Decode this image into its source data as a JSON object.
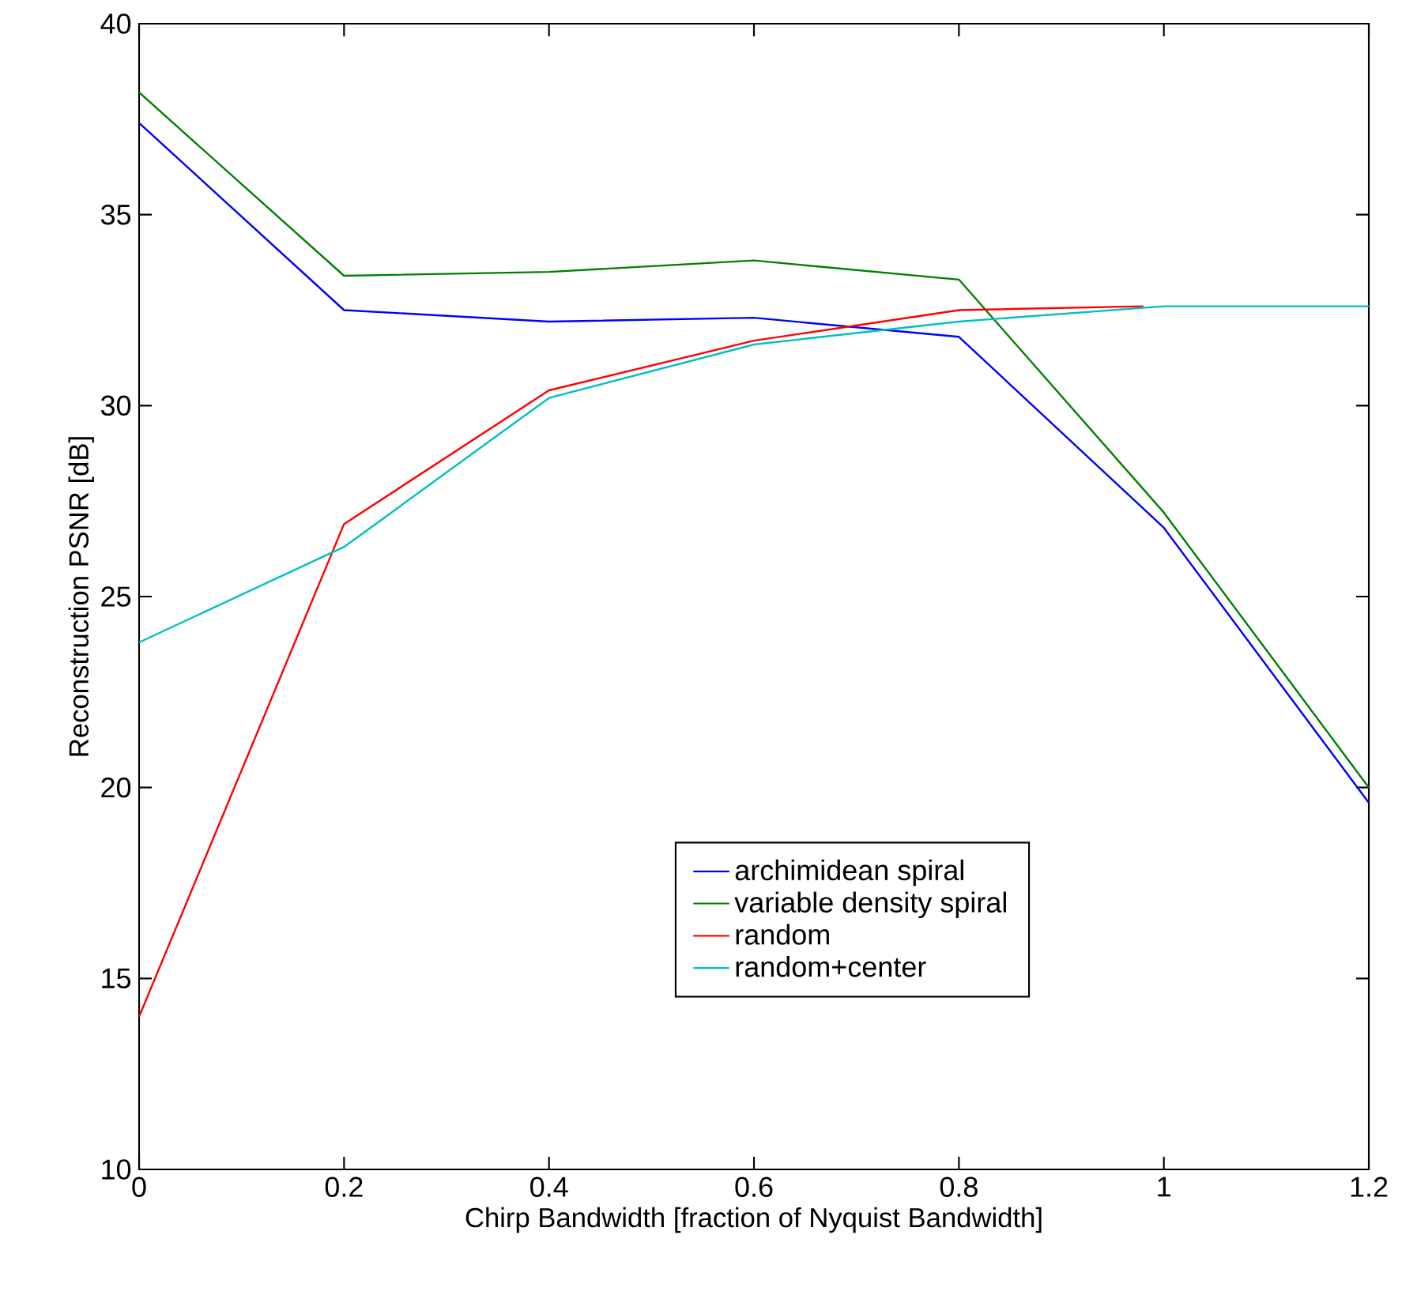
{
  "chart_data": {
    "type": "line",
    "xlabel": "Chirp Bandwidth [fraction of Nyquist Bandwidth]",
    "ylabel": "Reconstruction PSNR [dB]",
    "x": [
      0,
      0.2,
      0.4,
      0.6,
      0.8,
      1.0,
      1.2
    ],
    "series": [
      {
        "name": "archimidean spiral",
        "color": "#0000ff",
        "values": [
          37.4,
          32.5,
          32.2,
          32.3,
          31.8,
          26.8,
          19.6
        ]
      },
      {
        "name": "variable density spiral",
        "color": "#008000",
        "values": [
          38.2,
          33.4,
          33.5,
          33.8,
          33.3,
          27.2,
          20.0
        ]
      },
      {
        "name": "random",
        "color": "#ff0000",
        "x": [
          0,
          0.2,
          0.4,
          0.6,
          0.8,
          0.98
        ],
        "values": [
          14.0,
          26.9,
          30.4,
          31.7,
          32.5,
          32.6
        ]
      },
      {
        "name": "random+center",
        "color": "#00bfbf",
        "values": [
          23.8,
          26.3,
          30.2,
          31.6,
          32.2,
          32.6,
          32.6
        ]
      }
    ],
    "xlim": [
      0,
      1.2
    ],
    "ylim": [
      10,
      40
    ],
    "xticks": [
      0,
      0.2,
      0.4,
      0.6,
      0.8,
      1,
      1.2
    ],
    "yticks": [
      10,
      15,
      20,
      25,
      30,
      35,
      40
    ],
    "grid": false,
    "legend": "bottom",
    "marker": "none",
    "line_style": "solid"
  }
}
